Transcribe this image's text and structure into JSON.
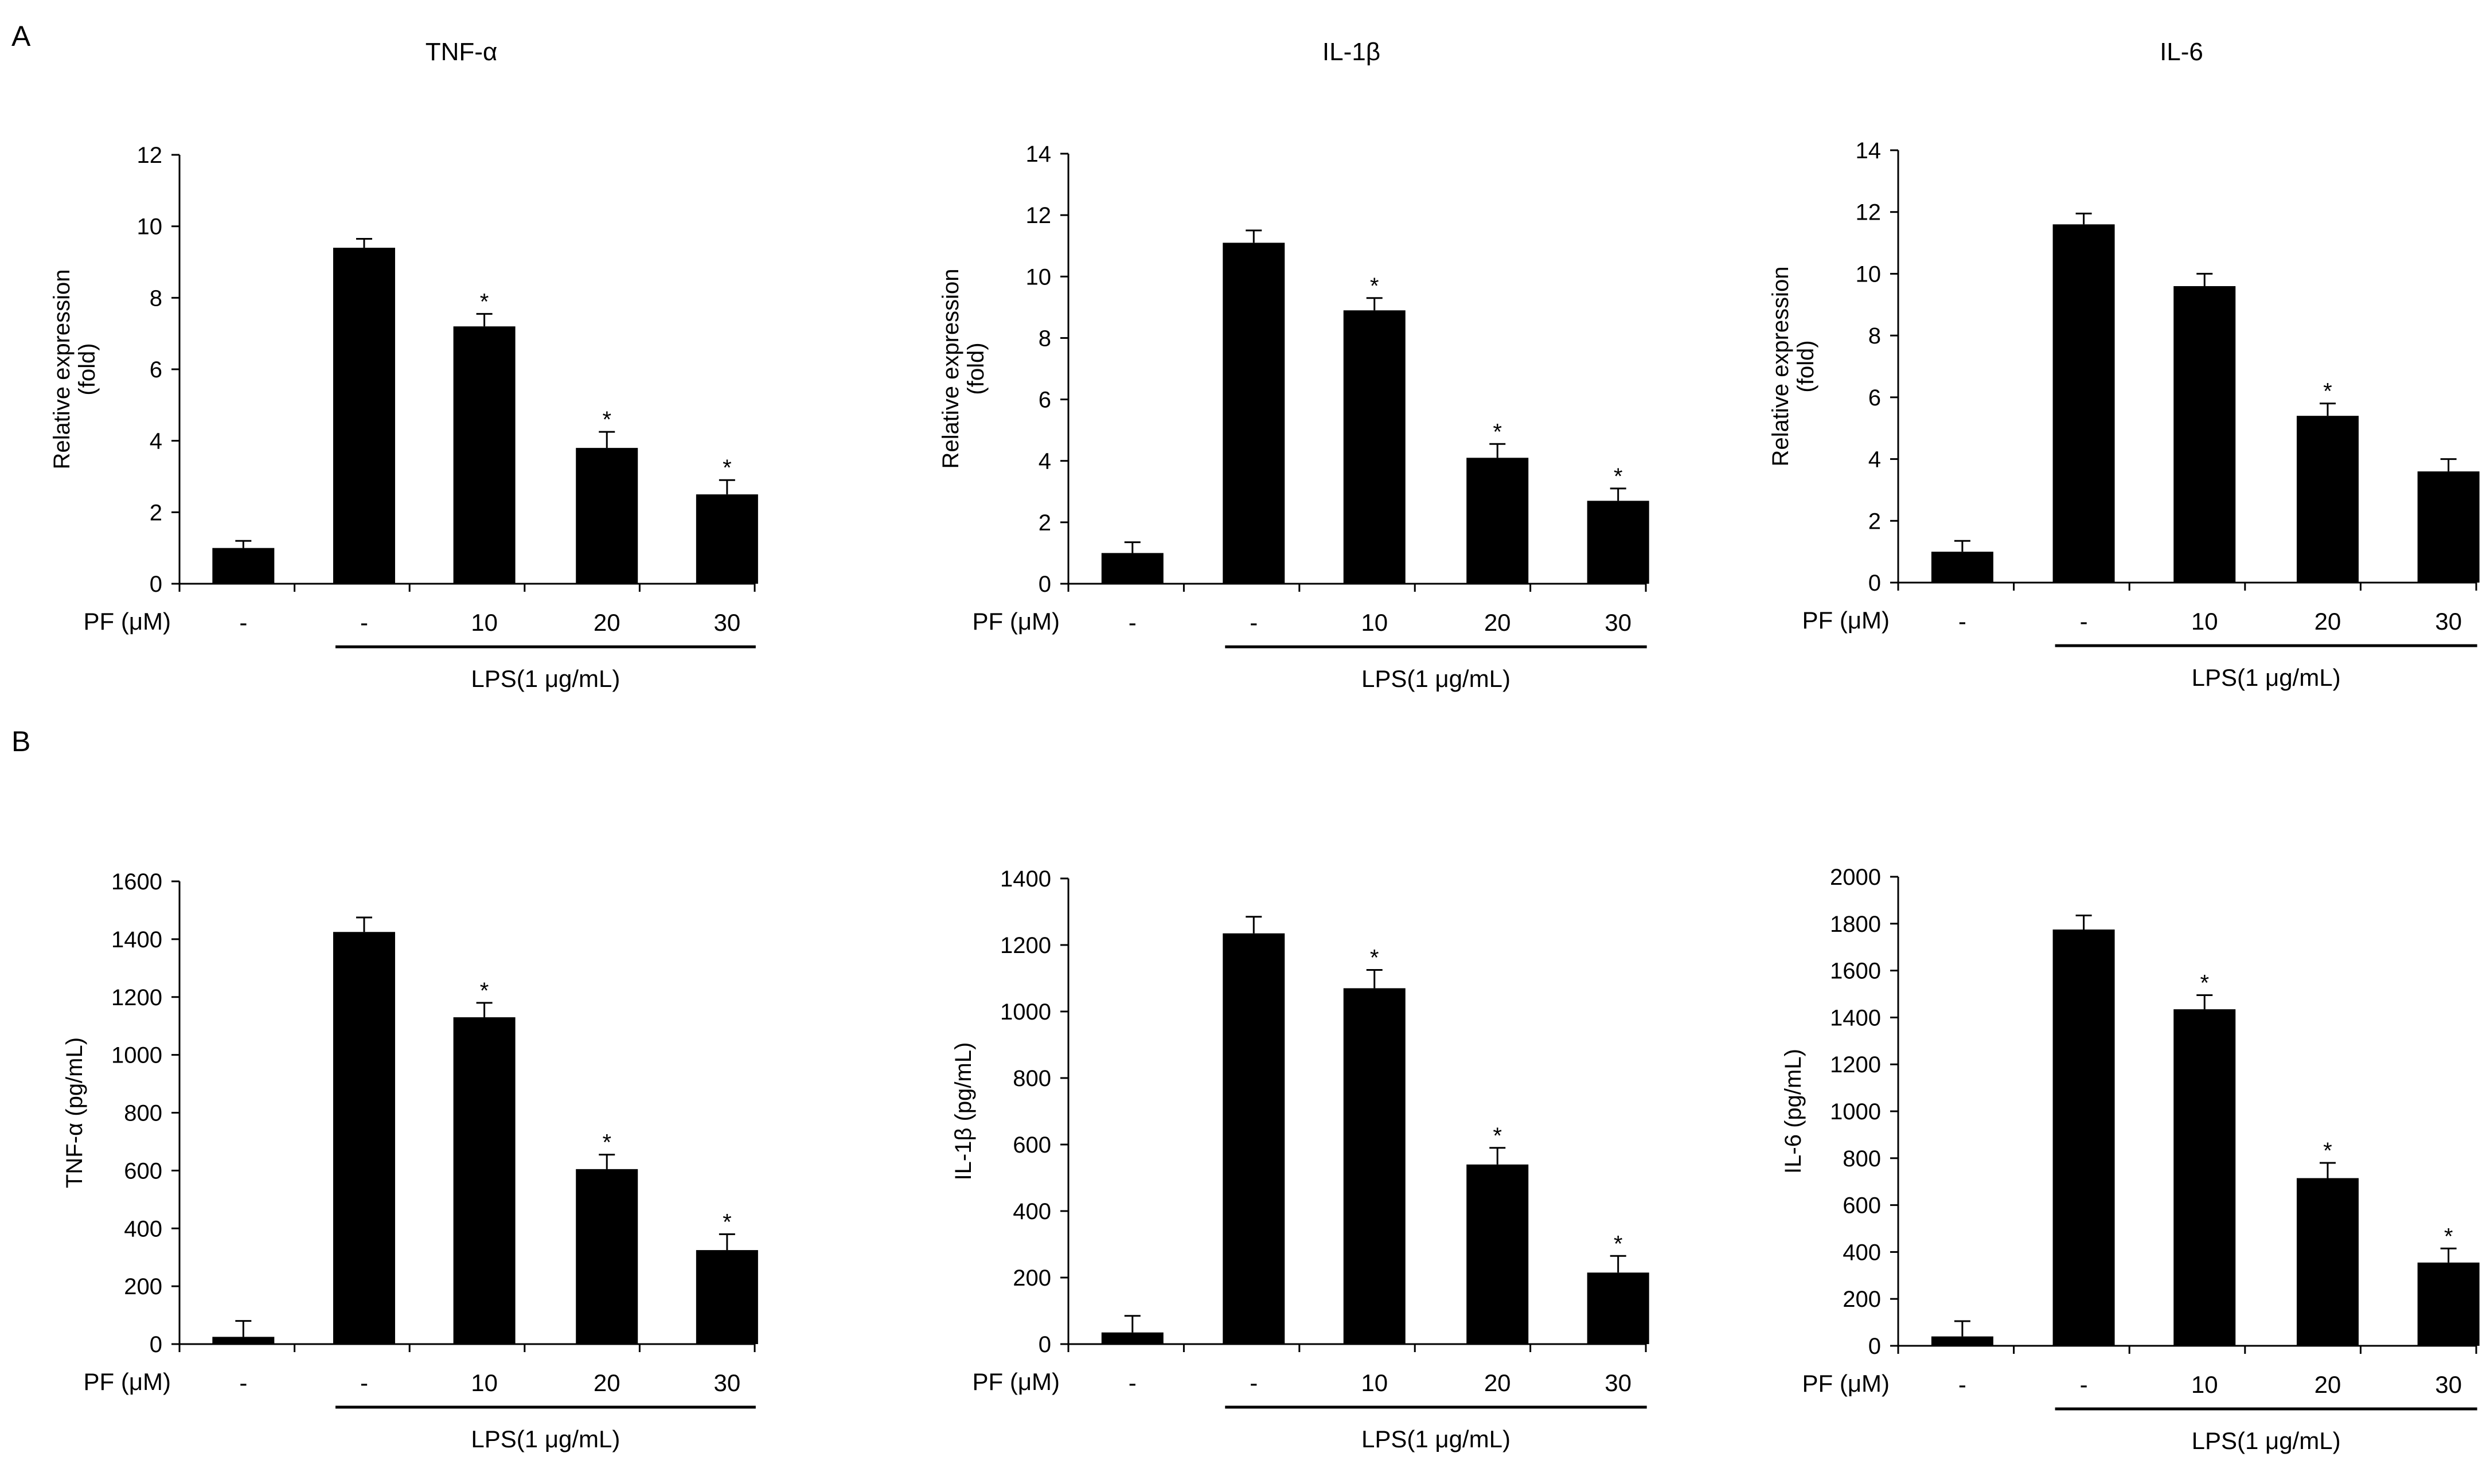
{
  "panel_labels": [
    "A",
    "B"
  ],
  "x_axis": {
    "row_label": "PF (μM)",
    "categories": [
      "-",
      "-",
      "10",
      "20",
      "30"
    ],
    "treatment_label": "LPS(1 μg/mL)"
  },
  "chart_data": [
    {
      "type": "bar",
      "panel": "A",
      "title": "TNF-α",
      "ylabel": [
        "Relative  expression",
        "(fold)"
      ],
      "ylim": [
        0,
        12
      ],
      "yticks": [
        0,
        2,
        4,
        6,
        8,
        10,
        12
      ],
      "categories": [
        "-",
        "-",
        "10",
        "20",
        "30"
      ],
      "values": [
        1.0,
        9.4,
        7.2,
        3.8,
        2.5
      ],
      "errors": [
        0.2,
        0.25,
        0.35,
        0.45,
        0.4
      ],
      "significance": [
        "",
        "",
        "*",
        "*",
        "*"
      ],
      "color": "#000000"
    },
    {
      "type": "bar",
      "panel": "A",
      "title": "IL-1β",
      "ylabel": [
        "Relative  expression",
        "(fold)"
      ],
      "ylim": [
        0,
        14
      ],
      "yticks": [
        0,
        2,
        4,
        6,
        8,
        10,
        12,
        14
      ],
      "categories": [
        "-",
        "-",
        "10",
        "20",
        "30"
      ],
      "values": [
        1.0,
        11.1,
        8.9,
        4.1,
        2.7
      ],
      "errors": [
        0.35,
        0.4,
        0.4,
        0.45,
        0.4
      ],
      "significance": [
        "",
        "",
        "*",
        "*",
        "*"
      ],
      "color": "#000000"
    },
    {
      "type": "bar",
      "panel": "A",
      "title": "IL-6",
      "ylabel": [
        "Relative  expression",
        "(fold)"
      ],
      "ylim": [
        0,
        14
      ],
      "yticks": [
        0,
        2,
        4,
        6,
        8,
        10,
        12,
        14
      ],
      "categories": [
        "-",
        "-",
        "10",
        "20",
        "30"
      ],
      "values": [
        1.0,
        11.6,
        9.6,
        5.4,
        3.6
      ],
      "errors": [
        0.35,
        0.35,
        0.4,
        0.4,
        0.4
      ],
      "significance": [
        "",
        "",
        "",
        "*",
        ""
      ],
      "color": "#000000"
    },
    {
      "type": "bar",
      "panel": "B",
      "title": "",
      "ylabel": [
        "TNF-α  (pg/mL)"
      ],
      "ylim": [
        0,
        1600
      ],
      "yticks": [
        0,
        200,
        400,
        600,
        800,
        1000,
        1200,
        1400,
        1600
      ],
      "categories": [
        "-",
        "-",
        "10",
        "20",
        "30"
      ],
      "values": [
        25,
        1425,
        1130,
        605,
        325
      ],
      "errors": [
        55,
        50,
        50,
        50,
        55
      ],
      "significance": [
        "",
        "",
        "*",
        "*",
        "*"
      ],
      "color": "#000000"
    },
    {
      "type": "bar",
      "panel": "B",
      "title": "",
      "ylabel": [
        "IL-1β  (pg/mL)"
      ],
      "ylim": [
        0,
        1400
      ],
      "yticks": [
        0,
        200,
        400,
        600,
        800,
        1000,
        1200,
        1400
      ],
      "categories": [
        "-",
        "-",
        "10",
        "20",
        "30"
      ],
      "values": [
        35,
        1235,
        1070,
        540,
        215
      ],
      "errors": [
        50,
        50,
        55,
        50,
        50
      ],
      "significance": [
        "",
        "",
        "*",
        "*",
        "*"
      ],
      "color": "#000000"
    },
    {
      "type": "bar",
      "panel": "B",
      "title": "",
      "ylabel": [
        "IL-6  (pg/mL)"
      ],
      "ylim": [
        0,
        2000
      ],
      "yticks": [
        0,
        200,
        400,
        600,
        800,
        1000,
        1200,
        1400,
        1600,
        1800,
        2000
      ],
      "categories": [
        "-",
        "-",
        "10",
        "20",
        "30"
      ],
      "values": [
        40,
        1775,
        1435,
        715,
        355
      ],
      "errors": [
        65,
        60,
        60,
        65,
        60
      ],
      "significance": [
        "",
        "",
        "*",
        "*",
        "*"
      ],
      "color": "#000000"
    }
  ]
}
